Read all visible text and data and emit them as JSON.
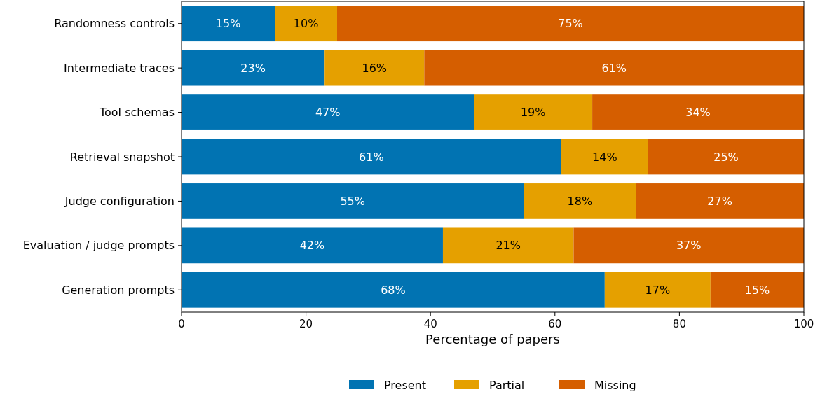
{
  "chart_data": {
    "type": "bar",
    "orientation": "horizontal",
    "stacked": true,
    "xlabel": "Percentage of papers",
    "categories": [
      "Randomness controls",
      "Intermediate traces",
      "Tool schemas",
      "Retrieval snapshot",
      "Judge configuration",
      "Evaluation / judge prompts",
      "Generation prompts"
    ],
    "series": [
      {
        "name": "Present",
        "color": "#0173b2",
        "values": [
          15,
          23,
          47,
          61,
          55,
          42,
          68
        ],
        "value_labels": [
          "15%",
          "23%",
          "47%",
          "61%",
          "55%",
          "42%",
          "68%"
        ]
      },
      {
        "name": "Partial",
        "color": "#e5a000",
        "values": [
          10,
          16,
          19,
          14,
          18,
          21,
          17
        ],
        "value_labels": [
          "10%",
          "16%",
          "19%",
          "14%",
          "18%",
          "21%",
          "17%"
        ]
      },
      {
        "name": "Missing",
        "color": "#d55e00",
        "values": [
          75,
          61,
          34,
          25,
          27,
          37,
          15
        ],
        "value_labels": [
          "75%",
          "61%",
          "34%",
          "25%",
          "27%",
          "37%",
          "15%"
        ]
      }
    ],
    "xlim": [
      0,
      100
    ],
    "xticks": [
      0,
      20,
      40,
      60,
      80,
      100
    ],
    "grid": false,
    "legend": "bottom"
  }
}
